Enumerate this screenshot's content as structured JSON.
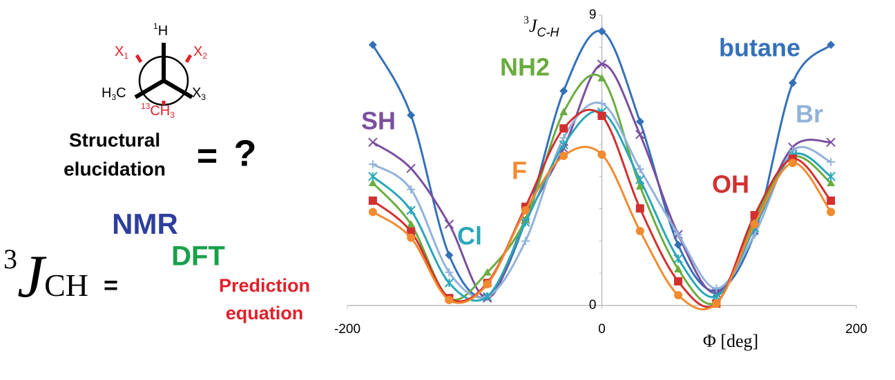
{
  "diagram": {
    "newman": {
      "top": {
        "sup": "1",
        "main": "H"
      },
      "x1": {
        "main": "X",
        "sub": "1"
      },
      "x2": {
        "main": "X",
        "sub": "2"
      },
      "left": {
        "main": "H",
        "sub": "3",
        "tail": "C"
      },
      "right": {
        "main": "X",
        "sub": "3"
      },
      "bottom": {
        "sup": "13",
        "main": "CH",
        "sub": "3"
      }
    },
    "question": {
      "line1": "Structural",
      "line2": "elucidation",
      "equals": "=",
      "mark": "?"
    },
    "equation": {
      "sup": "3",
      "main": "J",
      "sub": "CH",
      "equals": "=",
      "nmr": "NMR",
      "dft": "DFT",
      "prediction1": "Prediction",
      "prediction2": "equation"
    }
  },
  "chart_data": {
    "type": "line",
    "y_label": {
      "sup": "3",
      "main": "J",
      "sub": "C-H"
    },
    "x_label": "Φ [deg]",
    "xlim": [
      -200,
      200
    ],
    "xticks": [
      -200,
      0,
      200
    ],
    "ylim": [
      0,
      9
    ],
    "yticks": [
      0,
      9
    ],
    "minor_yticks": [
      1,
      2,
      3,
      4,
      5,
      6,
      7,
      8
    ],
    "smooth": true,
    "x": [
      -180,
      -150,
      -120,
      -90,
      -60,
      -30,
      0,
      30,
      60,
      90,
      120,
      150,
      180
    ],
    "series": [
      {
        "name": "butane",
        "color": "#3470b8",
        "marker": "diamond",
        "values": [
          8.08,
          5.9,
          1.56,
          0.28,
          2.63,
          6.65,
          8.5,
          5.7,
          1.88,
          0.45,
          2.24,
          6.9,
          8.08
        ]
      },
      {
        "name": "SH",
        "color": "#7a4f9e",
        "marker": "x",
        "values": [
          5.06,
          4.25,
          2.52,
          0.23,
          2.67,
          4.87,
          7.48,
          5.3,
          2.2,
          0.38,
          2.52,
          4.91,
          5.06
        ]
      },
      {
        "name": "NH2",
        "color": "#6aac3f",
        "marker": "triangle",
        "values": [
          3.8,
          2.52,
          0.23,
          1.03,
          2.67,
          6.0,
          7.05,
          3.7,
          1.13,
          0.1,
          2.67,
          4.6,
          3.8
        ]
      },
      {
        "name": "Br",
        "color": "#92b2d9",
        "marker": "plus",
        "values": [
          4.38,
          3.6,
          1.03,
          0.28,
          2.0,
          5.2,
          6.26,
          4.23,
          2.2,
          0.53,
          2.2,
          4.8,
          4.45
        ]
      },
      {
        "name": "Cl",
        "color": "#2aa7b8",
        "marker": "star",
        "values": [
          4.0,
          2.95,
          0.7,
          0.28,
          2.58,
          4.98,
          6.0,
          3.9,
          1.45,
          0.28,
          2.41,
          4.66,
          4.0
        ]
      },
      {
        "name": "OH",
        "color": "#d2302f",
        "marker": "square",
        "values": [
          3.25,
          2.29,
          0.23,
          0.7,
          3.06,
          5.49,
          5.88,
          3.01,
          0.75,
          0.06,
          2.8,
          4.55,
          3.25
        ]
      },
      {
        "name": "F",
        "color": "#f28a30",
        "marker": "circle",
        "values": [
          2.9,
          2.1,
          0.17,
          0.66,
          2.95,
          4.64,
          4.68,
          2.31,
          0.32,
          0.06,
          2.52,
          4.42,
          2.9
        ]
      }
    ]
  }
}
